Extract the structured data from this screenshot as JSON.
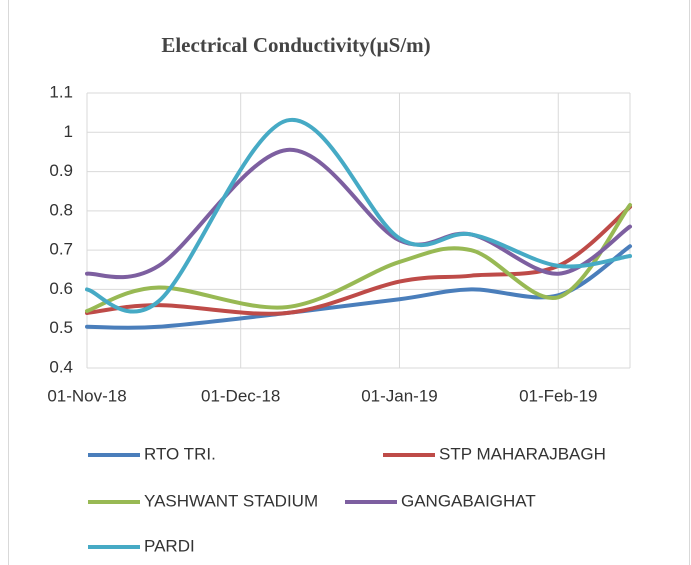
{
  "chart_data": {
    "type": "line",
    "title": "Electrical Conductivity(µS/m)",
    "x": [
      "2018-11-01",
      "2018-11-15",
      "2018-12-10",
      "2019-01-01",
      "2019-01-15",
      "2019-02-01",
      "2019-02-15"
    ],
    "xlim": [
      "2018-11-01",
      "2019-02-15"
    ],
    "xticks": [
      {
        "value": "2018-11-01",
        "label": "01-Nov-18"
      },
      {
        "value": "2018-12-01",
        "label": "01-Dec-18"
      },
      {
        "value": "2019-01-01",
        "label": "01-Jan-19"
      },
      {
        "value": "2019-02-01",
        "label": "01-Feb-19"
      }
    ],
    "ylim": [
      0.4,
      1.1
    ],
    "yticks": [
      0.4,
      0.5,
      0.6,
      0.7,
      0.8,
      0.9,
      1,
      1.1
    ],
    "grid": true,
    "legend": "bottom",
    "series": [
      {
        "name": "RTO TRI.",
        "color": "#4a7ebb",
        "values": [
          0.505,
          0.505,
          0.54,
          0.575,
          0.6,
          0.585,
          0.71
        ]
      },
      {
        "name": "STP MAHARAJBAGH",
        "color": "#be4b48",
        "values": [
          0.54,
          0.56,
          0.54,
          0.62,
          0.635,
          0.66,
          0.81
        ]
      },
      {
        "name": "YASHWANT STADIUM",
        "color": "#98b954",
        "values": [
          0.545,
          0.605,
          0.555,
          0.67,
          0.7,
          0.58,
          0.815
        ]
      },
      {
        "name": "GANGABAIGHAT",
        "color": "#7d5fa0",
        "values": [
          0.64,
          0.66,
          0.955,
          0.725,
          0.74,
          0.64,
          0.76
        ]
      },
      {
        "name": "PARDI",
        "color": "#46aac5",
        "values": [
          0.6,
          0.57,
          1.03,
          0.73,
          0.74,
          0.66,
          0.685
        ]
      }
    ]
  }
}
